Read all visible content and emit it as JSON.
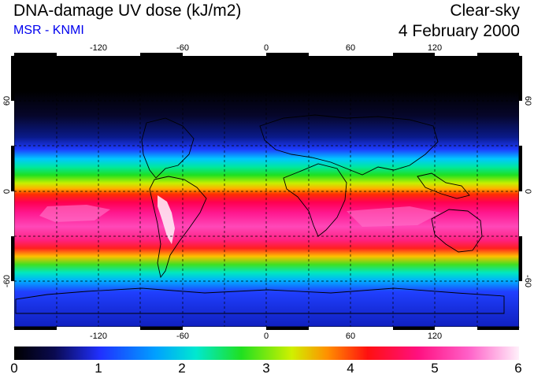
{
  "header": {
    "title": "DNA-damage UV dose (kJ/m2)",
    "subtitle": "MSR - KNMI",
    "mode": "Clear-sky",
    "date": "4 February 2000"
  },
  "colors": {
    "subtitle": "#0000ee",
    "frame": "#000000"
  },
  "map": {
    "lon_ticks": [
      "-120",
      "-60",
      "0",
      "60",
      "120"
    ],
    "lat_ticks": [
      "60",
      "0",
      "-60"
    ],
    "lon_range": [
      -180,
      180
    ],
    "lat_range": [
      -90,
      90
    ]
  },
  "colorbar": {
    "labels": [
      "0",
      "1",
      "2",
      "3",
      "4",
      "5",
      "6"
    ],
    "min": 0,
    "max": 6
  }
}
